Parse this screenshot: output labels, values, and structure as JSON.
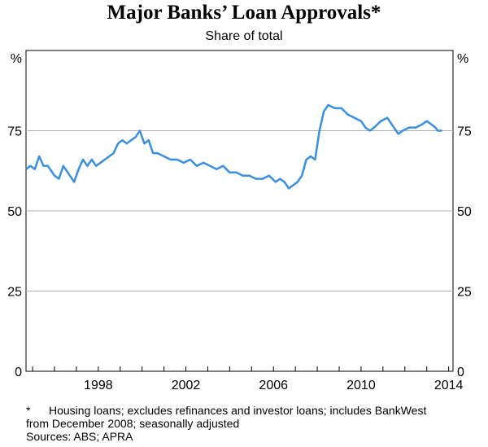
{
  "chart_data": {
    "type": "line",
    "title": "Major Banks’ Loan Approvals*",
    "subtitle": "Share of total",
    "y_unit_left": "%",
    "y_unit_right": "%",
    "ylim": [
      0,
      100
    ],
    "yticks": [
      0,
      25,
      50,
      75
    ],
    "xlim": [
      1994.7,
      2014.2
    ],
    "xticks": [
      1998,
      2002,
      2006,
      2010,
      2014
    ],
    "grid": true,
    "line_color": "#3a8fe0",
    "series": [
      {
        "x": [
          1994.7,
          1994.9,
          1995.1,
          1995.3,
          1995.5,
          1995.7,
          1996.0,
          1996.2,
          1996.4,
          1996.6,
          1996.8,
          1996.9,
          1997.1,
          1997.3,
          1997.5,
          1997.7,
          1997.9,
          1998.1,
          1998.3,
          1998.5,
          1998.7,
          1998.9,
          1999.1,
          1999.3,
          1999.5,
          1999.7,
          1999.9,
          2000.1,
          2000.3,
          2000.5,
          2000.7,
          2001.0,
          2001.3,
          2001.6,
          2001.9,
          2002.2,
          2002.5,
          2002.8,
          2003.1,
          2003.4,
          2003.7,
          2004.0,
          2004.3,
          2004.6,
          2004.9,
          2005.2,
          2005.5,
          2005.8,
          2006.1,
          2006.3,
          2006.5,
          2006.7,
          2006.9,
          2007.1,
          2007.3,
          2007.5,
          2007.7,
          2007.9,
          2008.1,
          2008.3,
          2008.5,
          2008.8,
          2009.1,
          2009.4,
          2009.7,
          2010.0,
          2010.2,
          2010.4,
          2010.6,
          2010.9,
          2011.2,
          2011.5,
          2011.7,
          2011.9,
          2012.2,
          2012.5,
          2012.8,
          2013.0,
          2013.2,
          2013.4,
          2013.5,
          2013.7
        ],
        "y": [
          63,
          64,
          63,
          67,
          64,
          64,
          61,
          60,
          64,
          62,
          60,
          59,
          63,
          66,
          64,
          66,
          64,
          65,
          66,
          67,
          68,
          71,
          72,
          71,
          72,
          73,
          75,
          71,
          72,
          68,
          68,
          67,
          66,
          66,
          65,
          66,
          64,
          65,
          64,
          63,
          64,
          62,
          62,
          61,
          61,
          60,
          60,
          61,
          59,
          60,
          59,
          57,
          58,
          59,
          61,
          66,
          67,
          66,
          75,
          81,
          83,
          82,
          82,
          80,
          79,
          78,
          76,
          75,
          76,
          78,
          79,
          76,
          74,
          75,
          76,
          76,
          77,
          78,
          77,
          76,
          75,
          75
        ]
      }
    ],
    "footnote_mark": "*",
    "footnote_lines": [
      "Housing loans; excludes refinances and investor loans; includes BankWest",
      "from December 2008; seasonally adjusted"
    ],
    "sources": "Sources: ABS; APRA"
  }
}
